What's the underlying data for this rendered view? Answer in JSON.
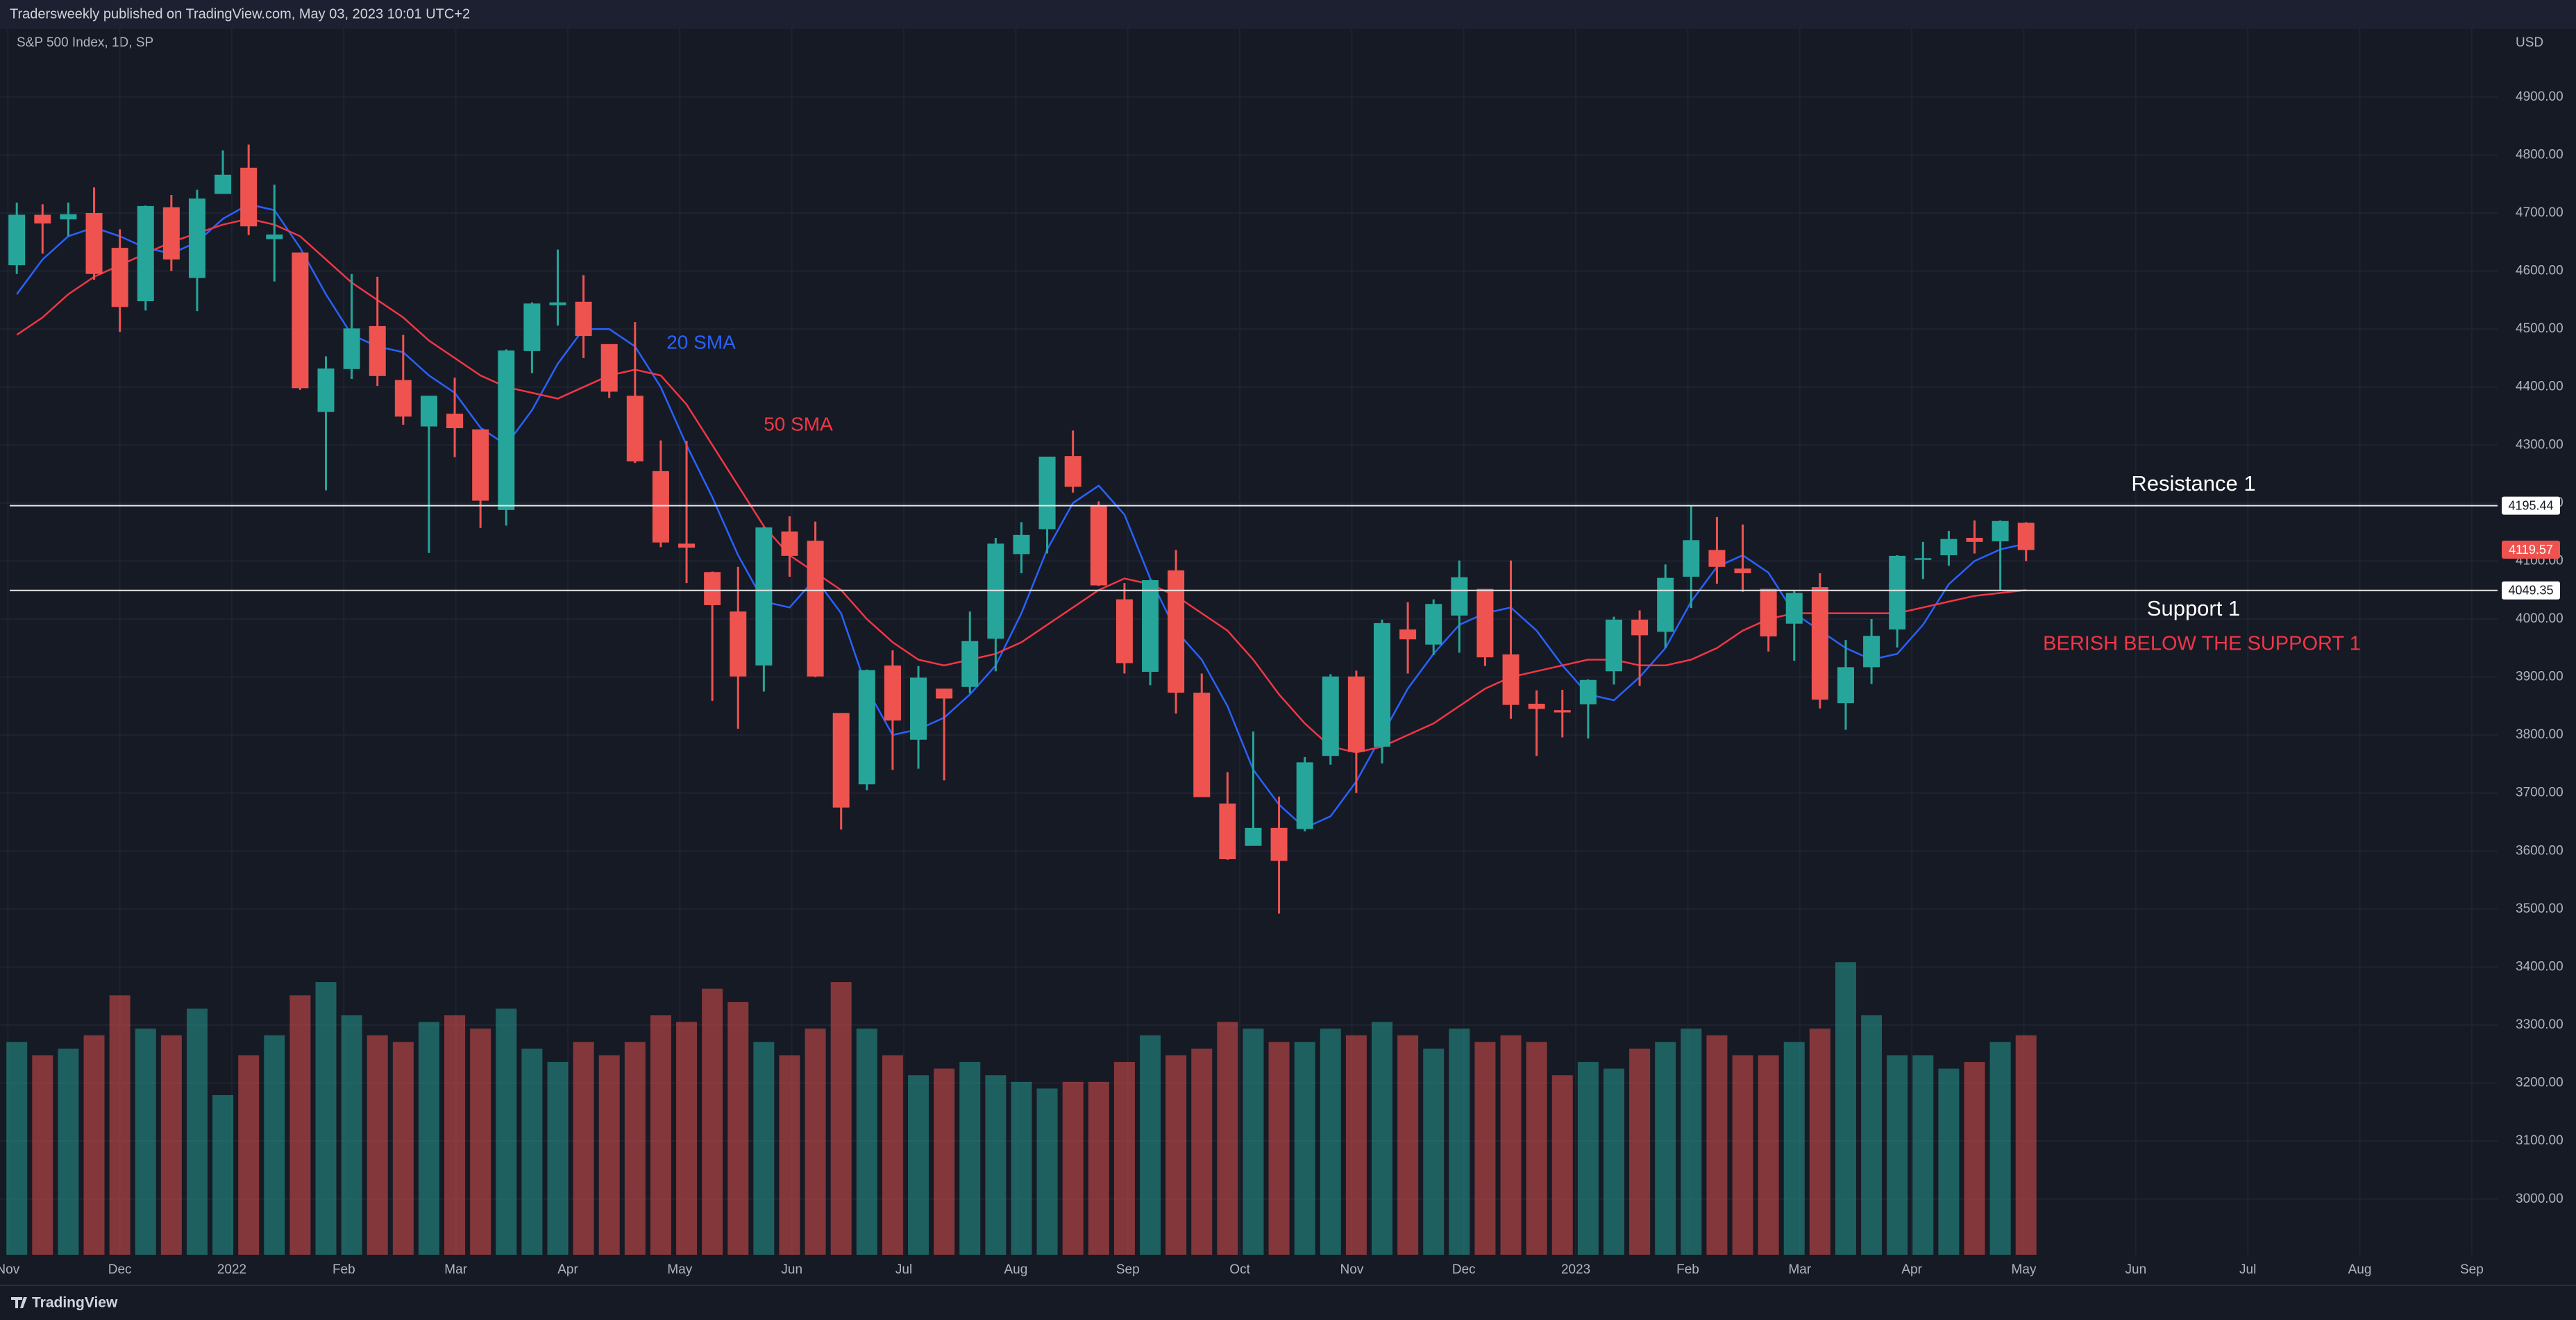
{
  "header": "Tradersweekly published on TradingView.com, May 03, 2023 10:01 UTC+2",
  "footer": "TradingView",
  "chart_data": {
    "type": "candlestick",
    "title": "S&P 500 Index, 1D, SP",
    "currency": "USD",
    "up_color": "#26a69a",
    "down_color": "#ef5350",
    "grid": true,
    "xlim": [
      9.93,
      32.23
    ],
    "xticks": [
      {
        "value": 10,
        "label": "Nov"
      },
      {
        "value": 11,
        "label": "Dec"
      },
      {
        "value": 12,
        "label": "2022"
      },
      {
        "value": 13,
        "label": "Feb"
      },
      {
        "value": 14,
        "label": "Mar"
      },
      {
        "value": 15,
        "label": "Apr"
      },
      {
        "value": 16,
        "label": "May"
      },
      {
        "value": 17,
        "label": "Jun"
      },
      {
        "value": 18,
        "label": "Jul"
      },
      {
        "value": 19,
        "label": "Aug"
      },
      {
        "value": 20,
        "label": "Sep"
      },
      {
        "value": 21,
        "label": "Oct"
      },
      {
        "value": 22,
        "label": "Nov"
      },
      {
        "value": 23,
        "label": "Dec"
      },
      {
        "value": 24,
        "label": "2023"
      },
      {
        "value": 25,
        "label": "Feb"
      },
      {
        "value": 26,
        "label": "Mar"
      },
      {
        "value": 27,
        "label": "Apr"
      },
      {
        "value": 28,
        "label": "May"
      },
      {
        "value": 29,
        "label": "Jun"
      },
      {
        "value": 30,
        "label": "Jul"
      },
      {
        "value": 31,
        "label": "Aug"
      },
      {
        "value": 32,
        "label": "Sep"
      }
    ],
    "ylim": [
      2904,
      5017
    ],
    "yticks": [
      {
        "value": 3000,
        "label": "3000.00"
      },
      {
        "value": 3100,
        "label": "3100.00"
      },
      {
        "value": 3200,
        "label": "3200.00"
      },
      {
        "value": 3300,
        "label": "3300.00"
      },
      {
        "value": 3400,
        "label": "3400.00"
      },
      {
        "value": 3500,
        "label": "3500.00"
      },
      {
        "value": 3600,
        "label": "3600.00"
      },
      {
        "value": 3700,
        "label": "3700.00"
      },
      {
        "value": 3800,
        "label": "3800.00"
      },
      {
        "value": 3900,
        "label": "3900.00"
      },
      {
        "value": 4000,
        "label": "4000.00"
      },
      {
        "value": 4100,
        "label": "4100.00"
      },
      {
        "value": 4200,
        "label": "4200.00"
      },
      {
        "value": 4300,
        "label": "4300.00"
      },
      {
        "value": 4400,
        "label": "4400.00"
      },
      {
        "value": 4500,
        "label": "4500.00"
      },
      {
        "value": 4600,
        "label": "4600.00"
      },
      {
        "value": 4700,
        "label": "4700.00"
      },
      {
        "value": 4800,
        "label": "4800.00"
      },
      {
        "value": 4900,
        "label": "4900.00"
      }
    ],
    "x": [
      10.08,
      10.31,
      10.54,
      10.77,
      11.0,
      11.23,
      11.46,
      11.69,
      11.92,
      12.15,
      12.38,
      12.61,
      12.84,
      13.07,
      13.3,
      13.53,
      13.76,
      13.99,
      14.22,
      14.45,
      14.68,
      14.91,
      15.14,
      15.37,
      15.6,
      15.83,
      16.06,
      16.29,
      16.52,
      16.75,
      16.98,
      17.21,
      17.44,
      17.67,
      17.9,
      18.13,
      18.36,
      18.59,
      18.82,
      19.05,
      19.28,
      19.51,
      19.74,
      19.97,
      20.2,
      20.43,
      20.66,
      20.89,
      21.12,
      21.35,
      21.58,
      21.81,
      22.04,
      22.27,
      22.5,
      22.73,
      22.96,
      23.19,
      23.42,
      23.65,
      23.88,
      24.11,
      24.34,
      24.57,
      24.8,
      25.03,
      25.26,
      25.49,
      25.72,
      25.95,
      26.18,
      26.41,
      26.64,
      26.87,
      27.1,
      27.33,
      27.56,
      27.79,
      28.02
    ],
    "open": [
      4610,
      4697,
      4689,
      4700,
      4640,
      4548,
      4710,
      4588,
      4733,
      4778,
      4655,
      4632,
      4357,
      4431,
      4505,
      4412,
      4332,
      4354,
      4327,
      4188,
      4462,
      4541,
      4547,
      4474,
      4385,
      4255,
      4130,
      4081,
      4013,
      3920,
      4151,
      4135,
      3838,
      3715,
      3920,
      3792,
      3880,
      3883,
      3966,
      4112,
      4155,
      4281,
      4195,
      4034,
      3909,
      4084,
      3873,
      3682,
      3609,
      3640,
      3638,
      3764,
      3901,
      3780,
      3982,
      3956,
      4006,
      4052,
      3939,
      3854,
      3843,
      3853,
      3910,
      3999,
      3978,
      4073,
      4119,
      4087,
      4052,
      3992,
      4055,
      3855,
      3917,
      3982,
      4102,
      4110,
      4140,
      4134,
      4166
    ],
    "high": [
      4718,
      4715,
      4718,
      4744,
      4672,
      4713,
      4731,
      4740,
      4808,
      4818,
      4749,
      4632,
      4453,
      4595,
      4590,
      4490,
      4385,
      4416,
      4327,
      4465,
      4546,
      4637,
      4593,
      4474,
      4512,
      4308,
      4307,
      4082,
      4090,
      4159,
      4177,
      4168,
      3838,
      3913,
      3946,
      3919,
      3880,
      4013,
      4140,
      4167,
      4280,
      4325,
      4203,
      4062,
      4068,
      4119,
      3906,
      3736,
      3806,
      3694,
      3762,
      3905,
      3911,
      3999,
      4029,
      4034,
      4101,
      4052,
      4101,
      3877,
      3878,
      3896,
      4004,
      4015,
      4094,
      4195,
      4176,
      4163,
      4052,
      4048,
      4079,
      3964,
      4000,
      4110,
      4133,
      4152,
      4170,
      4170,
      4167
    ],
    "low": [
      4595,
      4630,
      4660,
      4585,
      4495,
      4532,
      4600,
      4531,
      4733,
      4662,
      4582,
      4395,
      4222,
      4414,
      4402,
      4335,
      4114,
      4279,
      4157,
      4161,
      4424,
      4506,
      4450,
      4381,
      4269,
      4124,
      4062,
      3859,
      3811,
      3875,
      4073,
      3900,
      3637,
      3705,
      3740,
      3742,
      3722,
      3872,
      3910,
      4079,
      4113,
      4218,
      4057,
      3906,
      3886,
      3837,
      3694,
      3585,
      3610,
      3492,
      3634,
      3749,
      3700,
      3751,
      3906,
      3938,
      3942,
      3919,
      3828,
      3764,
      3796,
      3794,
      3887,
      3885,
      3950,
      4019,
      4061,
      4047,
      3944,
      3928,
      3846,
      3809,
      3888,
      3951,
      4069,
      4092,
      4113,
      4049,
      4100
    ],
    "close": [
      4697,
      4682,
      4698,
      4595,
      4538,
      4712,
      4620,
      4725,
      4766,
      4677,
      4663,
      4398,
      4432,
      4501,
      4419,
      4349,
      4385,
      4329,
      4204,
      4463,
      4544,
      4546,
      4488,
      4392,
      4272,
      4132,
      4123,
      4024,
      3901,
      4158,
      4109,
      3901,
      3675,
      3912,
      3825,
      3899,
      3863,
      3962,
      4130,
      4145,
      4280,
      4228,
      4058,
      3924,
      4067,
      3873,
      3693,
      3586,
      3640,
      3583,
      3753,
      3901,
      3771,
      3993,
      3965,
      4026,
      4072,
      3934,
      3852,
      3845,
      3839,
      3895,
      3999,
      3972,
      4071,
      4136,
      4090,
      4079,
      3970,
      4045,
      3861,
      3917,
      3971,
      4109,
      4105,
      4138,
      4133,
      4169,
      4119
    ],
    "volume": [
      3.2,
      3.0,
      3.1,
      3.3,
      3.9,
      3.4,
      3.3,
      3.7,
      2.4,
      3.0,
      3.3,
      3.9,
      4.1,
      3.6,
      3.3,
      3.2,
      3.5,
      3.6,
      3.4,
      3.7,
      3.1,
      2.9,
      3.2,
      3.0,
      3.2,
      3.6,
      3.5,
      4.0,
      3.8,
      3.2,
      3.0,
      3.4,
      4.1,
      3.4,
      3.0,
      2.7,
      2.8,
      2.9,
      2.7,
      2.6,
      2.5,
      2.6,
      2.6,
      2.9,
      3.3,
      3.0,
      3.1,
      3.5,
      3.4,
      3.2,
      3.2,
      3.4,
      3.3,
      3.5,
      3.3,
      3.1,
      3.4,
      3.2,
      3.3,
      3.2,
      2.7,
      2.9,
      2.8,
      3.1,
      3.2,
      3.4,
      3.3,
      3.0,
      3.0,
      3.2,
      3.4,
      4.4,
      3.6,
      3.0,
      3.0,
      2.8,
      2.9,
      3.2,
      3.3
    ],
    "volume_lim": [
      0,
      4.8
    ],
    "series": [
      {
        "name": "20 SMA",
        "color": "#2962ff",
        "values": [
          4560,
          4620,
          4660,
          4675,
          4660,
          4640,
          4630,
          4650,
          4690,
          4715,
          4705,
          4640,
          4560,
          4490,
          4470,
          4460,
          4420,
          4390,
          4330,
          4300,
          4360,
          4440,
          4500,
          4500,
          4470,
          4400,
          4300,
          4210,
          4110,
          4030,
          4020,
          4070,
          4010,
          3880,
          3800,
          3810,
          3830,
          3870,
          3920,
          4010,
          4120,
          4200,
          4230,
          4180,
          4070,
          3980,
          3930,
          3850,
          3740,
          3680,
          3640,
          3660,
          3720,
          3800,
          3880,
          3940,
          3990,
          4010,
          4020,
          3980,
          3920,
          3870,
          3860,
          3900,
          3950,
          4030,
          4090,
          4110,
          4080,
          4010,
          3980,
          3950,
          3930,
          3940,
          3990,
          4060,
          4100,
          4120,
          4130
        ]
      },
      {
        "name": "50 SMA",
        "color": "#f23645",
        "values": [
          4490,
          4520,
          4560,
          4590,
          4610,
          4630,
          4650,
          4665,
          4680,
          4690,
          4680,
          4660,
          4620,
          4580,
          4550,
          4520,
          4480,
          4450,
          4420,
          4400,
          4390,
          4380,
          4400,
          4420,
          4430,
          4420,
          4370,
          4300,
          4230,
          4160,
          4110,
          4080,
          4050,
          4000,
          3960,
          3930,
          3920,
          3930,
          3940,
          3960,
          3990,
          4020,
          4050,
          4070,
          4060,
          4040,
          4010,
          3980,
          3930,
          3870,
          3820,
          3780,
          3770,
          3780,
          3800,
          3820,
          3850,
          3880,
          3900,
          3910,
          3920,
          3930,
          3930,
          3920,
          3920,
          3930,
          3950,
          3980,
          4000,
          4010,
          4010,
          4010,
          4010,
          4010,
          4020,
          4030,
          4040,
          4045,
          4050
        ]
      }
    ],
    "levels": [
      {
        "label": "Resistance 1",
        "value": 4195.44
      },
      {
        "label": "Support 1",
        "value": 4049.35
      }
    ],
    "last_price": 4119.57,
    "note": "BERISH BELOW THE SUPPORT 1",
    "note_color": "#f23645"
  }
}
